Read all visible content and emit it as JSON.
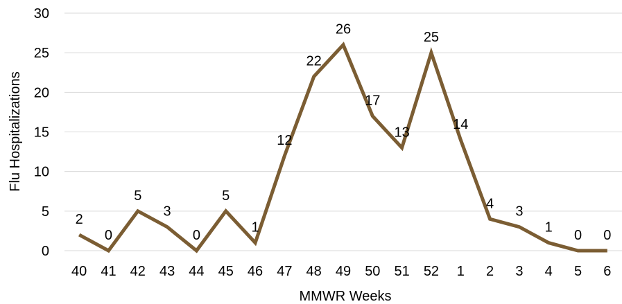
{
  "chart_data": {
    "type": "line",
    "title": "",
    "xlabel": "MMWR Weeks",
    "ylabel": "Flu Hospitalizations",
    "ylim": [
      0,
      30
    ],
    "yticks": [
      "0",
      "5",
      "10",
      "15",
      "20",
      "25",
      "30"
    ],
    "categories": [
      "40",
      "41",
      "42",
      "43",
      "44",
      "45",
      "46",
      "47",
      "48",
      "49",
      "50",
      "51",
      "52",
      "1",
      "2",
      "3",
      "4",
      "5",
      "6"
    ],
    "series": [
      {
        "values": [
          2,
          0,
          5,
          3,
          0,
          5,
          1,
          12,
          22,
          26,
          17,
          13,
          25,
          14,
          4,
          3,
          1,
          0,
          0
        ],
        "color": "#7b5d33"
      }
    ],
    "grid": true,
    "legend": "none"
  }
}
